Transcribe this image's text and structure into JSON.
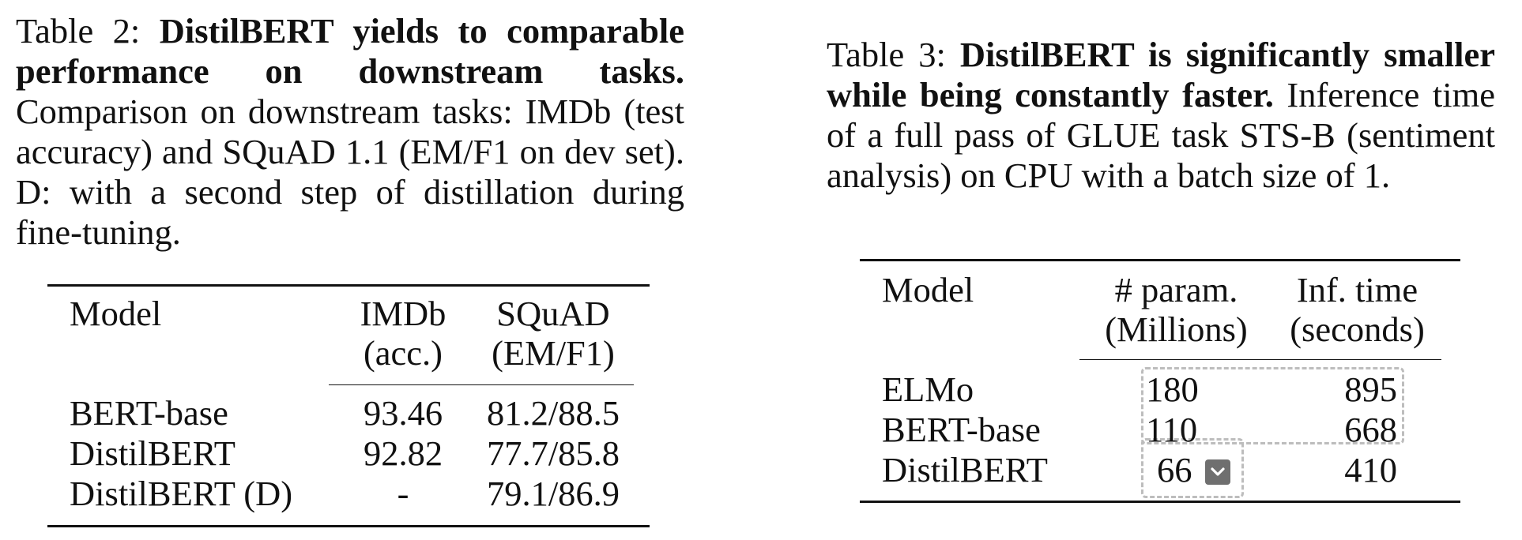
{
  "table2": {
    "caption_label": "Table 2:",
    "caption_bold": "DistilBERT yields to comparable performance on downstream tasks.",
    "caption_rest": "Comparison on downstream tasks: IMDb (test accuracy) and SQuAD 1.1 (EM/F1 on dev set). D: with a second step of distillation during fine-tuning.",
    "header": {
      "model": "Model",
      "imdb_line1": "IMDb",
      "imdb_line2": "(acc.)",
      "squad_line1": "SQuAD",
      "squad_line2": "(EM/F1)"
    },
    "rows": [
      {
        "model": "BERT-base",
        "imdb": "93.46",
        "squad": "81.2/88.5"
      },
      {
        "model": "DistilBERT",
        "imdb": "92.82",
        "squad": "77.7/85.8"
      },
      {
        "model": "DistilBERT (D)",
        "imdb": "-",
        "squad": "79.1/86.9"
      }
    ]
  },
  "table3": {
    "caption_label": "Table 3:",
    "caption_bold": "DistilBERT is significantly smaller while being constantly faster.",
    "caption_rest": "Inference time of a full pass of GLUE task STS-B (sentiment analysis) on CPU with a batch size of 1.",
    "header": {
      "model": "Model",
      "param_line1": "# param.",
      "param_line2": "(Millions)",
      "time_line1": "Inf. time",
      "time_line2": "(seconds)"
    },
    "rows": [
      {
        "model": "ELMo",
        "params": "180",
        "time": "895"
      },
      {
        "model": "BERT-base",
        "params": "110",
        "time": "668"
      },
      {
        "model": "DistilBERT",
        "params": "66",
        "time": "410"
      }
    ],
    "selection_icon": "chevron-down-icon"
  }
}
